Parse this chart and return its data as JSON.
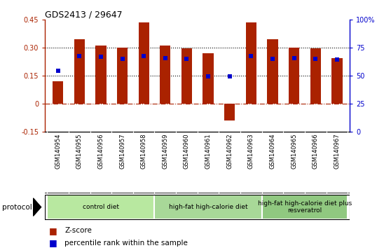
{
  "title": "GDS2413 / 29647",
  "samples": [
    "GSM140954",
    "GSM140955",
    "GSM140956",
    "GSM140957",
    "GSM140958",
    "GSM140959",
    "GSM140960",
    "GSM140961",
    "GSM140962",
    "GSM140963",
    "GSM140964",
    "GSM140965",
    "GSM140966",
    "GSM140967"
  ],
  "zscore": [
    0.12,
    0.345,
    0.31,
    0.3,
    0.435,
    0.31,
    0.295,
    0.27,
    -0.09,
    0.435,
    0.345,
    0.3,
    0.295,
    0.245
  ],
  "pct_rank": [
    0.175,
    0.255,
    0.25,
    0.24,
    0.255,
    0.245,
    0.24,
    0.145,
    0.145,
    0.255,
    0.24,
    0.245,
    0.24,
    0.235
  ],
  "bar_color": "#aa2200",
  "dot_color": "#0000cc",
  "groups": [
    {
      "label": "control diet",
      "start": 0,
      "end": 5,
      "color": "#b8e8a0"
    },
    {
      "label": "high-fat high-calorie diet",
      "start": 5,
      "end": 10,
      "color": "#a8d898"
    },
    {
      "label": "high-fat high-calorie diet plus\nresveratrol",
      "start": 10,
      "end": 14,
      "color": "#90c880"
    }
  ],
  "ylim_left": [
    -0.15,
    0.45
  ],
  "ylim_right": [
    0,
    100
  ],
  "yticks_left": [
    -0.15,
    0,
    0.15,
    0.3,
    0.45
  ],
  "yticks_right": [
    0,
    25,
    50,
    75,
    100
  ],
  "ytick_labels_left": [
    "-0.15",
    "0",
    "0.15",
    "0.30",
    "0.45"
  ],
  "ytick_labels_right": [
    "0",
    "25",
    "50",
    "75",
    "100%"
  ],
  "hlines": [
    0.15,
    0.3
  ],
  "hline_zero": 0,
  "bar_width": 0.5,
  "cell_bg": "#d0d0d0",
  "plot_bg": "#ffffff"
}
